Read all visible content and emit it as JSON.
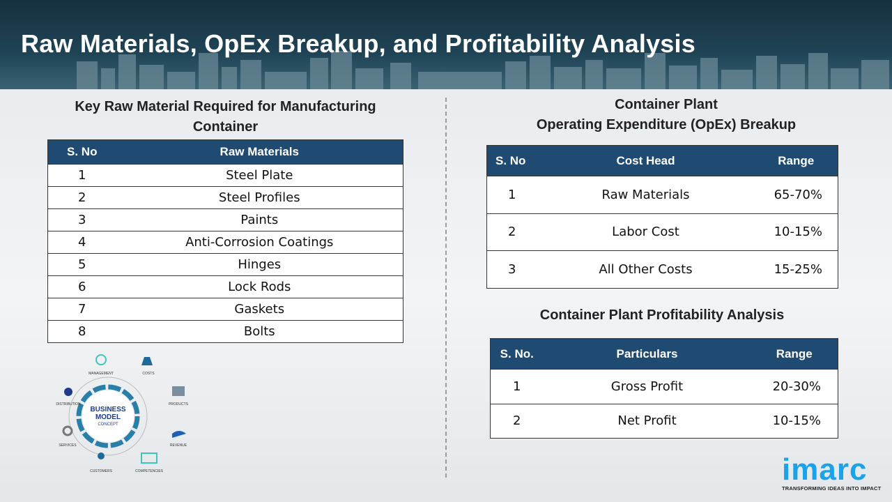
{
  "title": "Raw Materials, OpEx Breakup, and Profitability Analysis",
  "raw_materials": {
    "heading": "Key Raw Material Required for Manufacturing Container",
    "columns": [
      "S. No",
      "Raw Materials"
    ],
    "rows": [
      [
        "1",
        "Steel Plate"
      ],
      [
        "2",
        "Steel Profiles"
      ],
      [
        "3",
        "Paints"
      ],
      [
        "4",
        "Anti-Corrosion Coatings"
      ],
      [
        "5",
        "Hinges"
      ],
      [
        "6",
        "Lock Rods"
      ],
      [
        "7",
        "Gaskets"
      ],
      [
        "8",
        "Bolts"
      ]
    ]
  },
  "opex": {
    "heading_line1": "Container Plant",
    "heading_line2": "Operating Expenditure (OpEx) Breakup",
    "columns": [
      "S. No",
      "Cost Head",
      "Range"
    ],
    "rows": [
      [
        "1",
        "Raw Materials",
        "65-70%"
      ],
      [
        "2",
        "Labor Cost",
        "10-15%"
      ],
      [
        "3",
        "All Other Costs",
        "15-25%"
      ]
    ]
  },
  "profit": {
    "heading": "Container Plant Profitability Analysis",
    "columns": [
      "S. No.",
      "Particulars",
      "Range"
    ],
    "rows": [
      [
        "1",
        "Gross Profit",
        "20-30%"
      ],
      [
        "2",
        "Net Profit",
        "10-15%"
      ]
    ]
  },
  "business_model": {
    "center_line1": "BUSINESS",
    "center_line2": "MODEL",
    "center_line3": "CONCEPT",
    "labels": [
      "MANAGEMENT",
      "COSTS",
      "PRODUCTS",
      "REVENUE",
      "COMPETENCIES",
      "CUSTOMERS",
      "SERVICES",
      "DISTRIBUTION"
    ]
  },
  "logo": {
    "word": "imarc",
    "tagline": "TRANSFORMING IDEAS INTO IMPACT"
  },
  "colors": {
    "header_bg": "#1f4456",
    "table_header": "#1f4b73",
    "logo": "#1aa3e8"
  }
}
